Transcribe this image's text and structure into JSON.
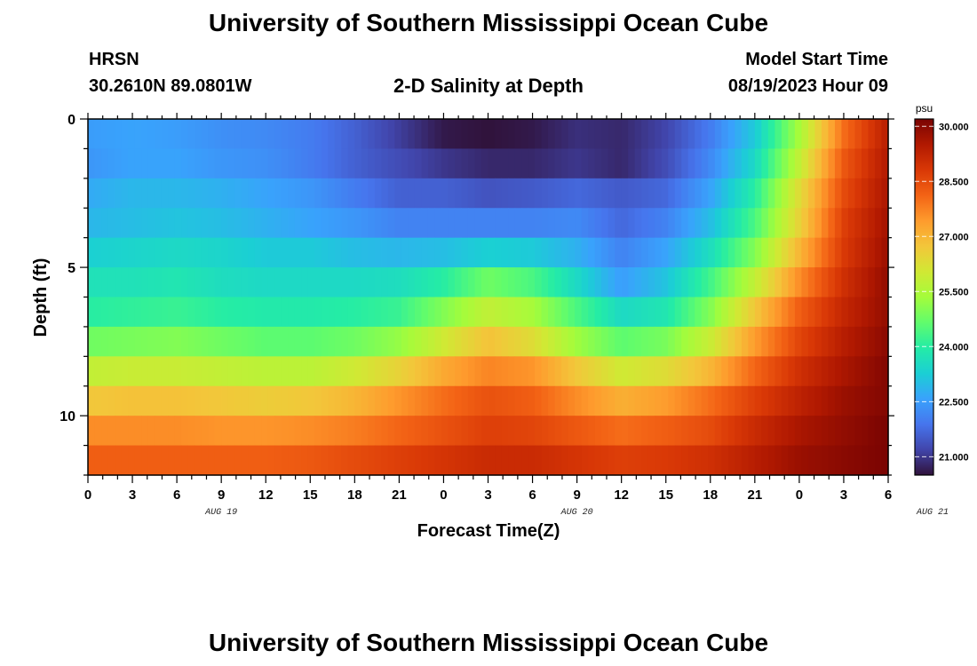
{
  "header": {
    "title": "University of Southern Mississippi Ocean Cube",
    "station_code": "HRSN",
    "coordinates": "30.2610N  89.0801W",
    "plot_title": "2-D Salinity at Depth",
    "model_start_label": "Model Start Time",
    "model_start_value": "08/19/2023 Hour 09"
  },
  "footer": {
    "title": "University of Southern Mississippi Ocean Cube"
  },
  "chart_data": {
    "type": "heatmap",
    "title": "2-D Salinity at Depth",
    "xlabel": "Forecast Time(Z)",
    "ylabel": "Depth (ft)",
    "x_tick_labels": [
      "0",
      "3",
      "6",
      "9",
      "12",
      "15",
      "18",
      "21",
      "0",
      "3",
      "6",
      "9",
      "12",
      "15",
      "18",
      "21",
      "0",
      "3",
      "6"
    ],
    "date_labels": [
      "AUG 19",
      "AUG 20",
      "AUG 21"
    ],
    "y_tick_labels": [
      "0",
      "5",
      "10"
    ],
    "ylim": [
      0,
      12
    ],
    "xlim_hours": [
      0,
      54
    ],
    "colorbar": {
      "unit": "psu",
      "range": [
        20.5,
        30.2
      ],
      "tick_labels": [
        "30.000",
        "28.500",
        "27.000",
        "25.500",
        "24.000",
        "22.500",
        "21.000"
      ],
      "colors": [
        "#30123b",
        "#4145ab",
        "#4675ed",
        "#39a2fc",
        "#1bcfd4",
        "#24eca6",
        "#61fc6c",
        "#a4fc3b",
        "#d1e834",
        "#f3c63a",
        "#fe9b2d",
        "#f36315",
        "#d93806",
        "#b11901",
        "#7a0402"
      ]
    },
    "depth_ft": [
      0.5,
      1.5,
      2.5,
      3.5,
      4.5,
      5.5,
      6.5,
      7.5,
      8.5,
      9.5,
      10.5,
      11.5
    ],
    "time_hours": [
      0,
      3,
      6,
      9,
      12,
      15,
      18,
      21,
      24,
      27,
      30,
      33,
      36,
      39,
      42,
      45,
      48,
      51,
      54
    ],
    "salinity": [
      [
        22.5,
        22.6,
        22.5,
        22.3,
        22.2,
        22.0,
        21.6,
        21.1,
        20.6,
        20.5,
        20.6,
        20.9,
        20.8,
        21.2,
        22.0,
        23.2,
        25.4,
        28.0,
        29.4
      ],
      [
        22.4,
        22.6,
        22.6,
        22.4,
        22.3,
        22.0,
        21.6,
        21.3,
        21.0,
        20.8,
        20.8,
        21.0,
        20.8,
        21.3,
        22.2,
        23.5,
        25.8,
        28.3,
        29.5
      ],
      [
        22.7,
        22.9,
        22.9,
        22.8,
        22.6,
        22.4,
        22.0,
        21.6,
        21.6,
        21.4,
        21.5,
        21.7,
        21.5,
        21.7,
        22.6,
        24.0,
        26.3,
        28.5,
        29.6
      ],
      [
        22.9,
        23.0,
        23.1,
        23.0,
        22.8,
        22.6,
        22.4,
        22.1,
        22.1,
        22.1,
        22.1,
        22.2,
        21.7,
        22.1,
        23.0,
        24.4,
        26.5,
        28.7,
        29.7
      ],
      [
        23.3,
        23.4,
        23.5,
        23.4,
        23.2,
        23.2,
        23.0,
        22.9,
        23.0,
        23.3,
        23.2,
        22.8,
        22.1,
        22.6,
        23.6,
        25.0,
        27.0,
        28.8,
        29.8
      ],
      [
        23.7,
        23.7,
        23.8,
        23.6,
        23.5,
        23.5,
        23.5,
        23.6,
        24.0,
        24.8,
        24.4,
        23.5,
        22.5,
        23.1,
        24.3,
        25.8,
        27.6,
        29.0,
        29.9
      ],
      [
        24.0,
        24.1,
        24.2,
        24.0,
        23.9,
        23.9,
        24.0,
        24.2,
        25.0,
        25.8,
        25.4,
        24.4,
        23.5,
        23.8,
        25.0,
        26.7,
        28.2,
        29.2,
        29.9
      ],
      [
        24.8,
        24.9,
        25.0,
        24.8,
        24.6,
        24.6,
        24.8,
        25.2,
        26.0,
        26.8,
        26.3,
        25.3,
        24.6,
        24.9,
        25.9,
        27.4,
        28.6,
        29.4,
        30.0
      ],
      [
        25.8,
        25.9,
        25.9,
        25.8,
        25.7,
        25.7,
        26.0,
        26.5,
        27.2,
        27.7,
        27.5,
        26.7,
        26.0,
        26.3,
        27.0,
        28.1,
        29.0,
        29.6,
        30.1
      ],
      [
        26.7,
        26.8,
        26.8,
        26.7,
        26.6,
        26.7,
        27.0,
        27.5,
        28.0,
        28.4,
        28.2,
        27.6,
        27.1,
        27.4,
        28.0,
        28.7,
        29.3,
        29.8,
        30.1
      ],
      [
        27.6,
        27.6,
        27.6,
        27.5,
        27.5,
        27.6,
        27.8,
        28.1,
        28.4,
        28.7,
        28.6,
        28.3,
        28.0,
        28.2,
        28.5,
        29.1,
        29.6,
        29.9,
        30.2
      ],
      [
        28.2,
        28.2,
        28.2,
        28.2,
        28.2,
        28.3,
        28.5,
        28.7,
        28.9,
        29.1,
        29.1,
        28.9,
        28.7,
        28.8,
        29.0,
        29.4,
        29.8,
        30.0,
        30.2
      ]
    ]
  }
}
